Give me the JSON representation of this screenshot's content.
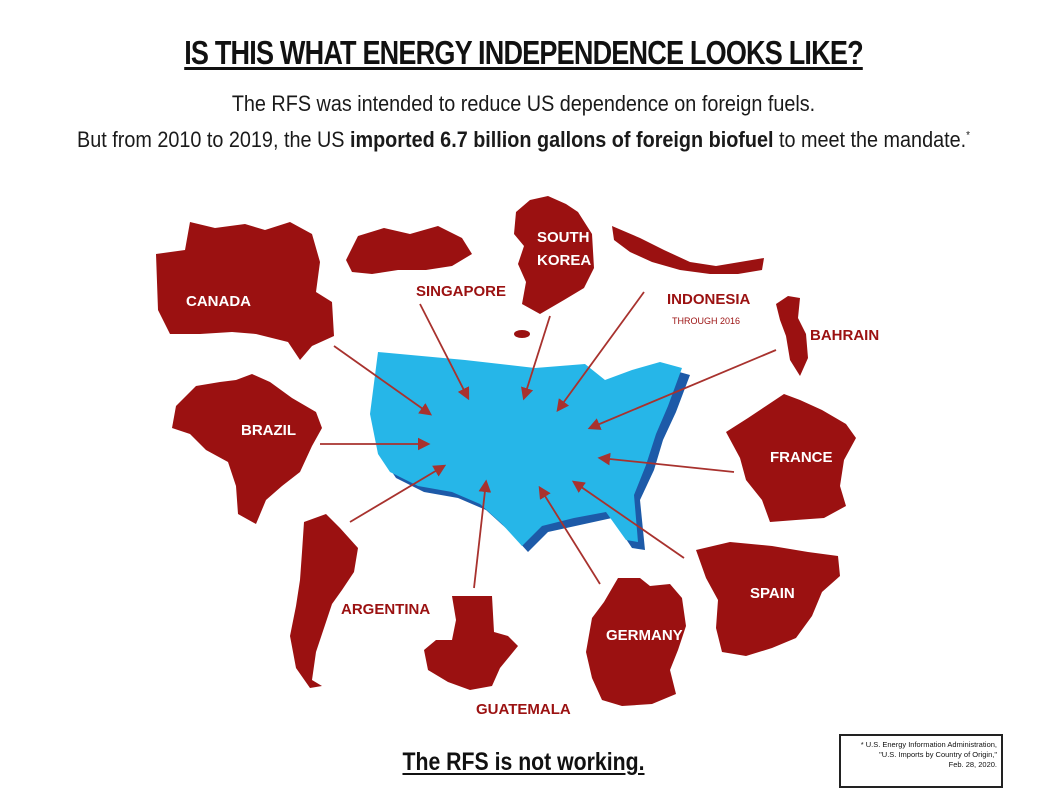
{
  "title": "IS THIS WHAT ENERGY INDEPENDENCE LOOKS LIKE?",
  "subtitle_line1": "The RFS was intended to reduce US dependence on foreign fuels.",
  "subtitle_line2_pre": "But from 2010 to 2019, the US ",
  "subtitle_line2_bold": "imported 6.7 billion gallons of foreign biofuel",
  "subtitle_line2_post": " to meet the mandate.",
  "subtitle_line2_mark": "*",
  "countries": {
    "canada": "CANADA",
    "singapore": "SINGAPORE",
    "south_korea_1": "SOUTH",
    "south_korea_2": "KOREA",
    "indonesia": "INDONESIA",
    "indonesia_note": "THROUGH 2016",
    "bahrain": "BAHRAIN",
    "brazil": "BRAZIL",
    "france": "FRANCE",
    "argentina": "ARGENTINA",
    "spain": "SPAIN",
    "germany": "GERMANY",
    "guatemala": "GUATEMALA"
  },
  "footer": "The RFS is not working.",
  "source": {
    "line1": "* U.S. Energy Information Administration,",
    "line2": "\"U.S. Imports by Country of Origin,\"",
    "line3": "Feb. 28, 2020."
  },
  "colors": {
    "country_fill": "#9b1111",
    "usa_fill": "#26b6e8",
    "usa_shadow": "#1d5aa8",
    "arrow": "#a8322e"
  }
}
